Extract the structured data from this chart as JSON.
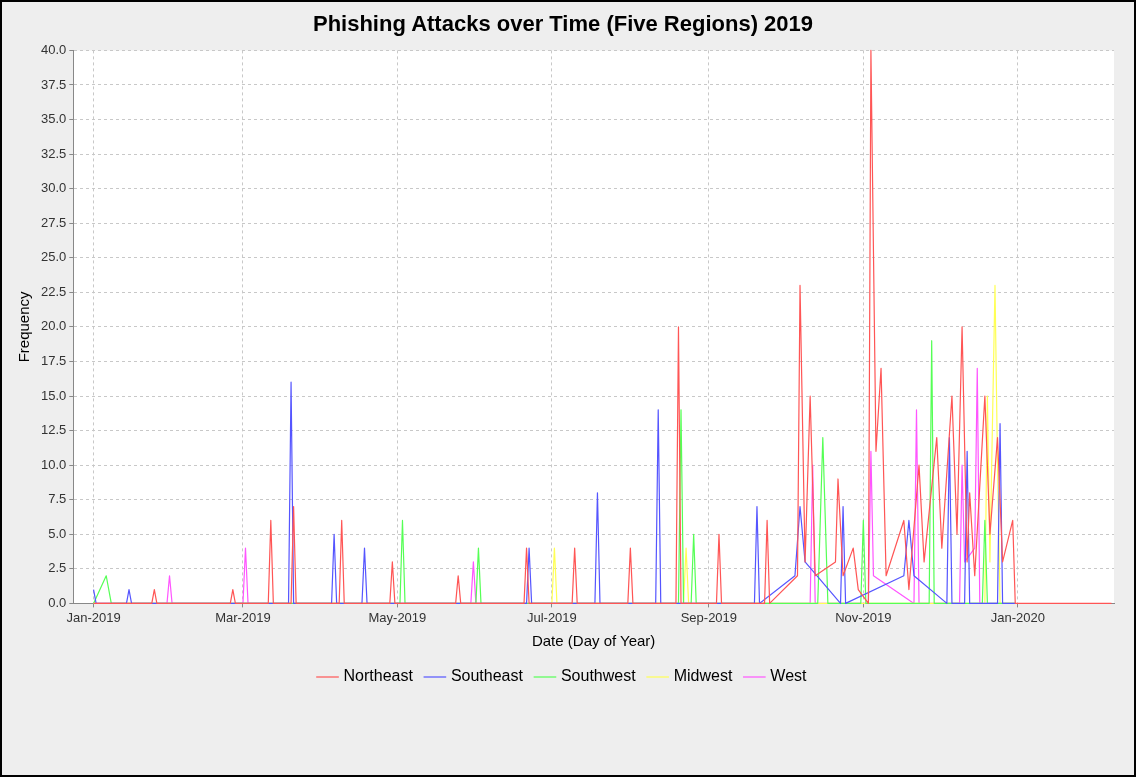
{
  "chart_data": {
    "type": "line",
    "title": "Phishing Attacks over Time (Five Regions) 2019",
    "xlabel": "Date (Day of Year)",
    "ylabel": "Frequency",
    "xlim": [
      "2018-12-24",
      "2020-02-08"
    ],
    "xticks": [
      {
        "value": "2019-01-01",
        "label": "Jan-2019"
      },
      {
        "value": "2019-03-01",
        "label": "Mar-2019"
      },
      {
        "value": "2019-05-01",
        "label": "May-2019"
      },
      {
        "value": "2019-07-01",
        "label": "Jul-2019"
      },
      {
        "value": "2019-09-01",
        "label": "Sep-2019"
      },
      {
        "value": "2019-11-01",
        "label": "Nov-2019"
      },
      {
        "value": "2020-01-01",
        "label": "Jan-2020"
      }
    ],
    "ylim": [
      0,
      40
    ],
    "yticks": [
      {
        "value": 0,
        "label": "0.0"
      },
      2.5,
      {
        "value": 5,
        "label": "5.0"
      },
      7.5,
      {
        "value": 10,
        "label": "10.0"
      },
      12.5,
      {
        "value": 15,
        "label": "15.0"
      },
      17.5,
      {
        "value": 20,
        "label": "20.0"
      },
      22.5,
      {
        "value": 25,
        "label": "25.0"
      },
      27.5,
      {
        "value": 30,
        "label": "30.0"
      },
      32.5,
      {
        "value": 35,
        "label": "35.0"
      },
      37.5,
      {
        "value": 40,
        "label": "40.0"
      }
    ],
    "grid": true,
    "legend": "bottom",
    "marker": "none",
    "line_style": "solid",
    "series": [
      {
        "name": "Northeast",
        "color": "#ff5555",
        "x": [
          "2019-01-01",
          "2019-01-24",
          "2019-01-25",
          "2019-01-26",
          "2019-02-24",
          "2019-02-25",
          "2019-02-26",
          "2019-03-11",
          "2019-03-12",
          "2019-03-13",
          "2019-03-20",
          "2019-03-21",
          "2019-03-22",
          "2019-04-08",
          "2019-04-09",
          "2019-04-10",
          "2019-04-28",
          "2019-04-29",
          "2019-04-30",
          "2019-05-24",
          "2019-05-25",
          "2019-05-26",
          "2019-06-20",
          "2019-06-21",
          "2019-06-22",
          "2019-07-09",
          "2019-07-10",
          "2019-07-11",
          "2019-07-31",
          "2019-08-01",
          "2019-08-02",
          "2019-08-19",
          "2019-08-20",
          "2019-08-21",
          "2019-09-04",
          "2019-09-05",
          "2019-09-06",
          "2019-09-23",
          "2019-09-24",
          "2019-09-25",
          "2019-10-06",
          "2019-10-07",
          "2019-10-09",
          "2019-10-11",
          "2019-10-13",
          "2019-10-21",
          "2019-10-22",
          "2019-10-24",
          "2019-10-28",
          "2019-10-30",
          "2019-11-03",
          "2019-11-04",
          "2019-11-06",
          "2019-11-08",
          "2019-11-10",
          "2019-11-17",
          "2019-11-19",
          "2019-11-23",
          "2019-11-25",
          "2019-11-30",
          "2019-12-02",
          "2019-12-06",
          "2019-12-08",
          "2019-12-10",
          "2019-12-12",
          "2019-12-13",
          "2019-12-15",
          "2019-12-19",
          "2019-12-21",
          "2019-12-24",
          "2019-12-26",
          "2019-12-30",
          "2019-12-31",
          "2020-02-07"
        ],
        "values": [
          0,
          0,
          1,
          0,
          0,
          1,
          0,
          0,
          6,
          0,
          0,
          7,
          0,
          0,
          6,
          0,
          0,
          3,
          0,
          0,
          2,
          0,
          0,
          4,
          0,
          0,
          4,
          0,
          0,
          4,
          0,
          0,
          20,
          0,
          0,
          5,
          0,
          0,
          6,
          0,
          2,
          23,
          3,
          15,
          2,
          3,
          9,
          2,
          4,
          1,
          0,
          40,
          11,
          17,
          2,
          6,
          1,
          10,
          3,
          12,
          4,
          15,
          5,
          20,
          3,
          8,
          2,
          15,
          5,
          12,
          3,
          6,
          0,
          0
        ]
      },
      {
        "name": "Southeast",
        "color": "#5555ff",
        "x": [
          "2019-01-01",
          "2019-01-02",
          "2019-01-14",
          "2019-01-15",
          "2019-01-16",
          "2019-03-19",
          "2019-03-20",
          "2019-03-21",
          "2019-04-05",
          "2019-04-06",
          "2019-04-07",
          "2019-04-17",
          "2019-04-18",
          "2019-04-19",
          "2019-06-21",
          "2019-06-22",
          "2019-06-23",
          "2019-07-18",
          "2019-07-19",
          "2019-07-20",
          "2019-08-11",
          "2019-08-12",
          "2019-08-13",
          "2019-09-19",
          "2019-09-20",
          "2019-09-21",
          "2019-10-05",
          "2019-10-07",
          "2019-10-09",
          "2019-10-23",
          "2019-10-24",
          "2019-10-25",
          "2019-11-17",
          "2019-11-19",
          "2019-11-21",
          "2019-12-04",
          "2019-12-05",
          "2019-12-06",
          "2019-12-11",
          "2019-12-12",
          "2019-12-13",
          "2019-12-24",
          "2019-12-25",
          "2019-12-26",
          "2019-12-31"
        ],
        "values": [
          1,
          0,
          0,
          1,
          0,
          0,
          16,
          0,
          0,
          5,
          0,
          0,
          4,
          0,
          0,
          4,
          0,
          0,
          8,
          0,
          0,
          14,
          0,
          0,
          7,
          0,
          2,
          7,
          3,
          0,
          7,
          0,
          2,
          6,
          2,
          0,
          12,
          0,
          0,
          11,
          0,
          0,
          13,
          0,
          0
        ]
      },
      {
        "name": "Southwest",
        "color": "#55ff55",
        "x": [
          "2019-01-01",
          "2019-01-06",
          "2019-01-08",
          "2019-05-02",
          "2019-05-03",
          "2019-05-04",
          "2019-06-01",
          "2019-06-02",
          "2019-06-03",
          "2019-08-20",
          "2019-08-21",
          "2019-08-22",
          "2019-08-25",
          "2019-08-26",
          "2019-08-27",
          "2019-10-14",
          "2019-10-16",
          "2019-10-18",
          "2019-10-31",
          "2019-11-01",
          "2019-11-02",
          "2019-11-27",
          "2019-11-28",
          "2019-11-29",
          "2019-12-18",
          "2019-12-19",
          "2019-12-20",
          "2019-12-31"
        ],
        "values": [
          0,
          2,
          0,
          0,
          6,
          0,
          0,
          4,
          0,
          0,
          14,
          0,
          0,
          5,
          0,
          0,
          12,
          0,
          0,
          6,
          0,
          0,
          19,
          0,
          0,
          6,
          0,
          0
        ]
      },
      {
        "name": "Midwest",
        "color": "#ffff55",
        "x": [
          "2019-01-01",
          "2019-07-01",
          "2019-07-02",
          "2019-07-03",
          "2019-08-22",
          "2019-08-23",
          "2019-08-24",
          "2019-12-19",
          "2019-12-20",
          "2019-12-21",
          "2019-12-23",
          "2019-12-24",
          "2019-12-25",
          "2019-12-31"
        ],
        "values": [
          0,
          0,
          4,
          0,
          0,
          4,
          0,
          0,
          15,
          3,
          23,
          10,
          0,
          0
        ]
      },
      {
        "name": "West",
        "color": "#ff55ff",
        "x": [
          "2019-01-01",
          "2019-01-30",
          "2019-01-31",
          "2019-02-01",
          "2019-03-01",
          "2019-03-02",
          "2019-03-03",
          "2019-05-30",
          "2019-05-31",
          "2019-06-01",
          "2019-10-11",
          "2019-10-12",
          "2019-10-13",
          "2019-11-03",
          "2019-11-04",
          "2019-11-05",
          "2019-11-21",
          "2019-11-22",
          "2019-11-23",
          "2019-12-09",
          "2019-12-10",
          "2019-12-11",
          "2019-12-15",
          "2019-12-16",
          "2019-12-17",
          "2019-12-31"
        ],
        "values": [
          0,
          0,
          2,
          0,
          0,
          4,
          0,
          0,
          3,
          0,
          0,
          10,
          0,
          0,
          11,
          2,
          0,
          14,
          0,
          0,
          10,
          3,
          4,
          17,
          0,
          0
        ]
      }
    ]
  }
}
